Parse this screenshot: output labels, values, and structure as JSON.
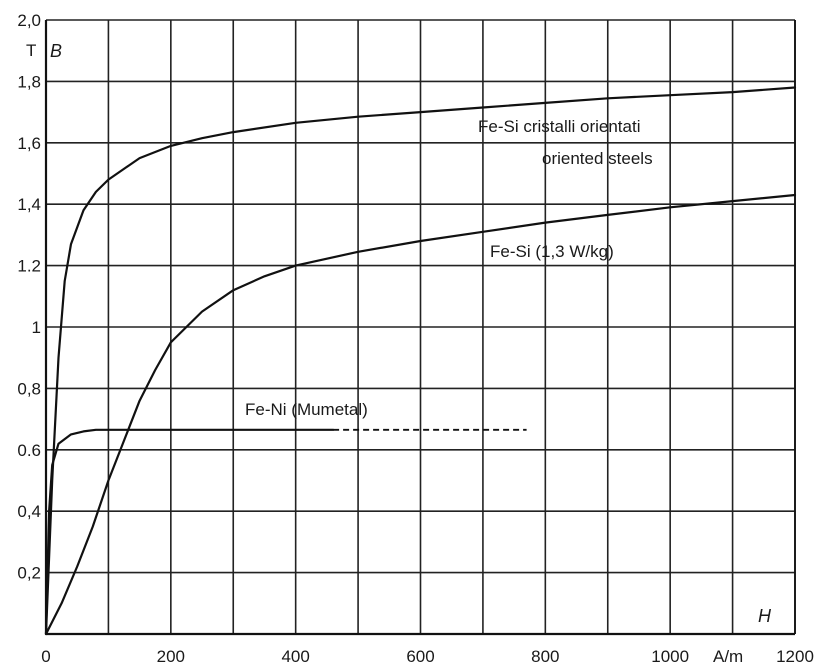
{
  "chart_data": {
    "type": "line",
    "title": "",
    "xlabel": "H",
    "x_unit": "A/m",
    "ylabel": "B",
    "y_unit": "T",
    "xlim": [
      0,
      1200
    ],
    "ylim": [
      0,
      2.0
    ],
    "x_ticks": [
      {
        "value": 0,
        "label": "0"
      },
      {
        "value": 200,
        "label": "200"
      },
      {
        "value": 400,
        "label": "400"
      },
      {
        "value": 600,
        "label": "600"
      },
      {
        "value": 800,
        "label": "800"
      },
      {
        "value": 1000,
        "label": "1000"
      },
      {
        "value": 1200,
        "label": "1200"
      }
    ],
    "y_ticks": [
      {
        "value": 0.2,
        "label": "0,2"
      },
      {
        "value": 0.4,
        "label": "0,4"
      },
      {
        "value": 0.6,
        "label": "0.6"
      },
      {
        "value": 0.8,
        "label": "0,8"
      },
      {
        "value": 1.0,
        "label": "1"
      },
      {
        "value": 1.2,
        "label": "1.2"
      },
      {
        "value": 1.4,
        "label": "1,4"
      },
      {
        "value": 1.6,
        "label": "1,6"
      },
      {
        "value": 1.8,
        "label": "1,8"
      },
      {
        "value": 2.0,
        "label": "2,0"
      }
    ],
    "grid": true,
    "grid_x_step": 100,
    "grid_y_step": 0.2,
    "series": [
      {
        "name": "Fe-Si cristalli orientati",
        "name_line2": "oriented steels",
        "points": [
          [
            0,
            0
          ],
          [
            10,
            0.5
          ],
          [
            20,
            0.9
          ],
          [
            30,
            1.15
          ],
          [
            40,
            1.27
          ],
          [
            60,
            1.38
          ],
          [
            80,
            1.44
          ],
          [
            100,
            1.48
          ],
          [
            150,
            1.55
          ],
          [
            200,
            1.59
          ],
          [
            250,
            1.615
          ],
          [
            300,
            1.635
          ],
          [
            400,
            1.665
          ],
          [
            500,
            1.685
          ],
          [
            600,
            1.7
          ],
          [
            700,
            1.715
          ],
          [
            800,
            1.73
          ],
          [
            900,
            1.745
          ],
          [
            1000,
            1.755
          ],
          [
            1100,
            1.765
          ],
          [
            1200,
            1.78
          ]
        ]
      },
      {
        "name": "Fe-Si (1,3 W/kg)",
        "points": [
          [
            0,
            0
          ],
          [
            25,
            0.1
          ],
          [
            50,
            0.22
          ],
          [
            75,
            0.35
          ],
          [
            100,
            0.5
          ],
          [
            125,
            0.63
          ],
          [
            150,
            0.76
          ],
          [
            175,
            0.86
          ],
          [
            200,
            0.95
          ],
          [
            250,
            1.05
          ],
          [
            300,
            1.12
          ],
          [
            350,
            1.165
          ],
          [
            400,
            1.2
          ],
          [
            500,
            1.245
          ],
          [
            600,
            1.28
          ],
          [
            700,
            1.31
          ],
          [
            800,
            1.34
          ],
          [
            900,
            1.365
          ],
          [
            1000,
            1.39
          ],
          [
            1100,
            1.41
          ],
          [
            1200,
            1.43
          ]
        ]
      },
      {
        "name": "Fe-Ni (Mumetal)",
        "points": [
          [
            0,
            0
          ],
          [
            5,
            0.4
          ],
          [
            10,
            0.55
          ],
          [
            20,
            0.62
          ],
          [
            40,
            0.65
          ],
          [
            60,
            0.66
          ],
          [
            80,
            0.665
          ],
          [
            150,
            0.665
          ],
          [
            300,
            0.665
          ],
          [
            460,
            0.665
          ]
        ],
        "dashed_extension": [
          [
            460,
            0.665
          ],
          [
            770,
            0.665
          ]
        ]
      }
    ]
  }
}
